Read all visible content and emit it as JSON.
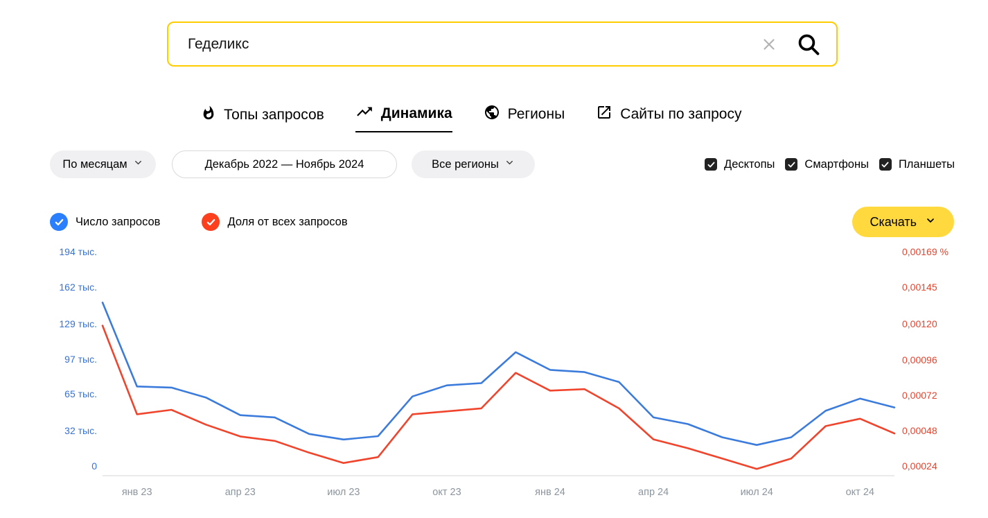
{
  "search": {
    "value": "Геделикс"
  },
  "tabs": [
    {
      "label": "Топы запросов",
      "icon": "flame-icon",
      "active": false
    },
    {
      "label": "Динамика",
      "icon": "trend-icon",
      "active": true
    },
    {
      "label": "Регионы",
      "icon": "globe-icon",
      "active": false
    },
    {
      "label": "Сайты по запросу",
      "icon": "external-link-icon",
      "active": false
    }
  ],
  "filters": {
    "period": "По месяцам",
    "date_range": "Декабрь 2022 — Ноябрь 2024",
    "region": "Все регионы",
    "devices": [
      {
        "label": "Десктопы",
        "checked": true
      },
      {
        "label": "Смартфоны",
        "checked": true
      },
      {
        "label": "Планшеты",
        "checked": true
      }
    ]
  },
  "legend": [
    {
      "label": "Число запросов",
      "color": "#2b7ffc"
    },
    {
      "label": "Доля от всех запросов",
      "color": "#fc3f1d"
    }
  ],
  "download_button": {
    "label": "Скачать"
  },
  "chart_data": {
    "type": "line",
    "title": "",
    "categories": [
      "дек 22",
      "янв 23",
      "фев 23",
      "мар 23",
      "апр 23",
      "май 23",
      "июн 23",
      "июл 23",
      "авг 23",
      "сен 23",
      "окт 23",
      "ноя 23",
      "дек 23",
      "янв 24",
      "фев 24",
      "мар 24",
      "апр 24",
      "май 24",
      "июн 24",
      "июл 24",
      "авг 24",
      "сен 24",
      "окт 24",
      "ноя 24"
    ],
    "series": [
      {
        "name": "Число запросов",
        "axis": "left",
        "unit": "тыс.",
        "color": "#3b7bdb",
        "values": [
          148,
          72,
          71,
          62,
          46,
          44,
          29,
          24,
          27,
          63,
          73,
          75,
          103,
          87,
          85,
          76,
          44,
          38,
          26,
          19,
          26,
          50,
          61,
          53
        ]
      },
      {
        "name": "Доля от всех запросов",
        "axis": "right",
        "unit": "%",
        "color": "#f0442c",
        "values": [
          0.00119,
          0.00059,
          0.00062,
          0.00052,
          0.00044,
          0.00041,
          0.00033,
          0.00026,
          0.0003,
          0.00059,
          0.00061,
          0.00063,
          0.00087,
          0.00075,
          0.00076,
          0.00063,
          0.00042,
          0.00036,
          0.00029,
          0.00022,
          0.00029,
          0.00051,
          0.00056,
          0.00046
        ]
      }
    ],
    "left_axis": {
      "min": 0,
      "max": 194,
      "color": "#3670d9",
      "tick_values": [
        194,
        162,
        129,
        97,
        65,
        32,
        0
      ],
      "tick_labels": [
        "194 тыс.",
        "162 тыс.",
        "129 тыс.",
        "97 тыс.",
        "65 тыс.",
        "32 тыс.",
        "0"
      ]
    },
    "right_axis": {
      "min": 0.00024,
      "max": 0.00169,
      "color": "#e8432d",
      "tick_values": [
        0.00169,
        0.00145,
        0.0012,
        0.00096,
        0.00072,
        0.00048,
        0.00024
      ],
      "tick_labels": [
        "0,00169 %",
        "0,00145",
        "0,00120",
        "0,00096",
        "0,00072",
        "0,00048",
        "0,00024"
      ]
    },
    "x_ticks": [
      {
        "index": 1,
        "label": "янв 23"
      },
      {
        "index": 4,
        "label": "апр 23"
      },
      {
        "index": 7,
        "label": "июл 23"
      },
      {
        "index": 10,
        "label": "окт 23"
      },
      {
        "index": 13,
        "label": "янв 24"
      },
      {
        "index": 16,
        "label": "апр 24"
      },
      {
        "index": 19,
        "label": "июл 24"
      },
      {
        "index": 22,
        "label": "окт 24"
      }
    ],
    "x_tick_color": "#8b959e",
    "grid": false,
    "legend_position": "top-left"
  }
}
